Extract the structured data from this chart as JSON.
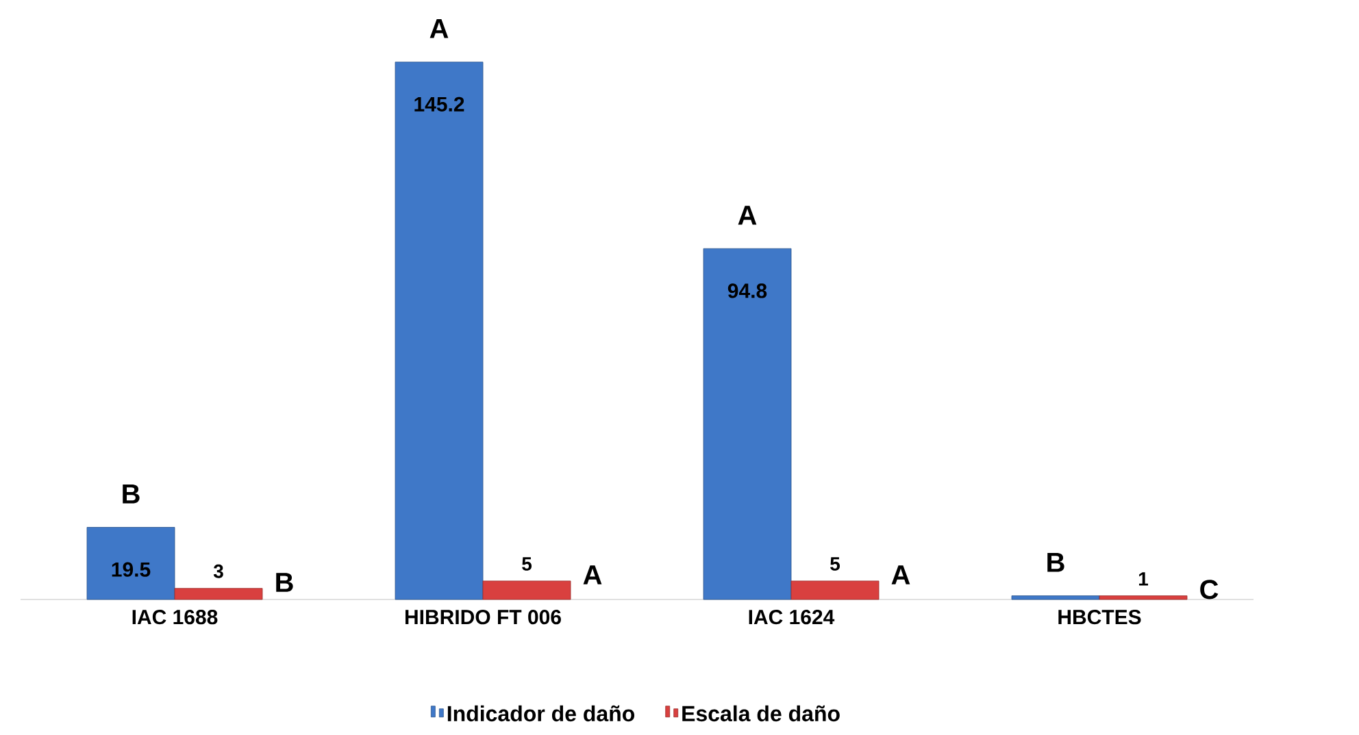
{
  "chart_data": {
    "type": "bar",
    "categories": [
      "IAC 1688",
      "HIBRIDO FT 006",
      "IAC 1624",
      "HBCTES"
    ],
    "series": [
      {
        "name": "Indicador de daño",
        "color": "#3f78c8",
        "values": [
          19.5,
          145.2,
          94.8,
          1
        ],
        "value_labels": [
          "19.5",
          "145.2",
          "94.8",
          null
        ]
      },
      {
        "name": "Escala de daño",
        "color": "#d9403f",
        "values": [
          3,
          5,
          5,
          1
        ],
        "value_labels": [
          "3",
          "5",
          "5",
          "1"
        ]
      }
    ],
    "tick_labels": "x",
    "legend": "bottom",
    "annotations": [
      "B",
      "B",
      "A",
      "A",
      "A",
      "A",
      "B",
      "C"
    ]
  }
}
